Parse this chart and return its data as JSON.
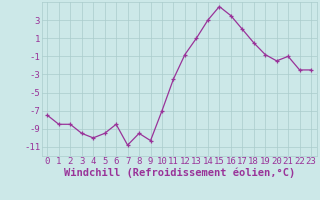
{
  "x": [
    0,
    1,
    2,
    3,
    4,
    5,
    6,
    7,
    8,
    9,
    10,
    11,
    12,
    13,
    14,
    15,
    16,
    17,
    18,
    19,
    20,
    21,
    22,
    23
  ],
  "y": [
    -7.5,
    -8.5,
    -8.5,
    -9.5,
    -10.0,
    -9.5,
    -8.5,
    -10.8,
    -9.5,
    -10.3,
    -7.0,
    -3.5,
    -0.8,
    1.0,
    3.0,
    4.5,
    3.5,
    2.0,
    0.5,
    -0.8,
    -1.5,
    -1.0,
    -2.5,
    -2.5
  ],
  "line_color": "#993399",
  "marker": "+",
  "bg_color": "#cce8e8",
  "grid_color": "#aacccc",
  "tick_color": "#993399",
  "label_color": "#993399",
  "xlabel": "Windchill (Refroidissement éolien,°C)",
  "ylim": [
    -12,
    5
  ],
  "xlim": [
    -0.5,
    23.5
  ],
  "yticks": [
    3,
    1,
    -1,
    -3,
    -5,
    -7,
    -9,
    -11
  ],
  "xticks": [
    0,
    1,
    2,
    3,
    4,
    5,
    6,
    7,
    8,
    9,
    10,
    11,
    12,
    13,
    14,
    15,
    16,
    17,
    18,
    19,
    20,
    21,
    22,
    23
  ],
  "font_size": 6.5,
  "xlabel_font_size": 7.5
}
